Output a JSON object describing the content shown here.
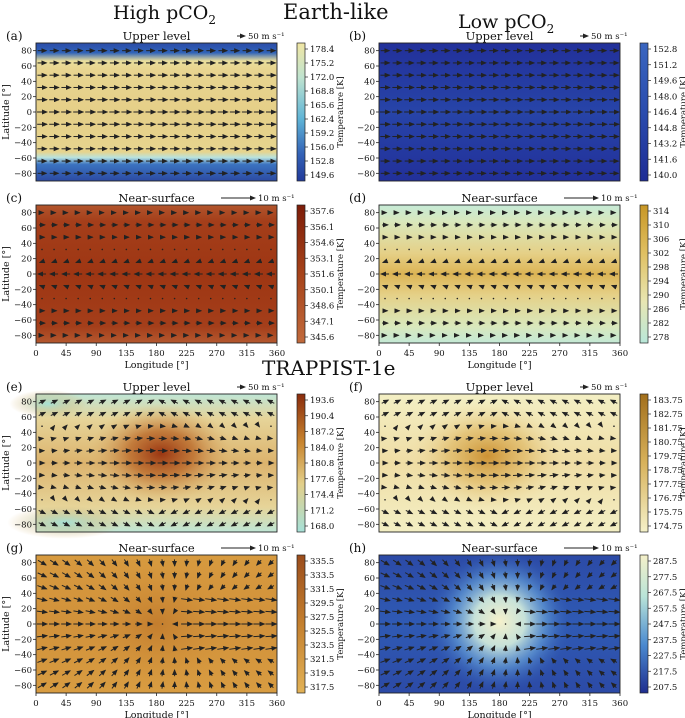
{
  "headers": {
    "earth_like": "Earth-like",
    "trappist": "TRAPPIST-1e",
    "high_pco2": "High pCO",
    "low_pco2": "Low pCO",
    "sub2": "2"
  },
  "colorbar_label": "Temperature [K]",
  "lon_label": "Longitude [°]",
  "lat_label": "Latitude [°]",
  "lon_ticks": [
    "0",
    "45",
    "90",
    "135",
    "180",
    "225",
    "270",
    "315",
    "360"
  ],
  "lat_ticks": [
    "80",
    "60",
    "40",
    "20",
    "0",
    "−20",
    "−40",
    "−60",
    "−80"
  ],
  "chart_data": [
    {
      "id": "a",
      "label": "(a)",
      "type": "heatmap",
      "title": "Upper level",
      "scale": "50 m s⁻¹",
      "xlim": [
        0,
        360
      ],
      "ylim": [
        -90,
        90
      ],
      "cbar_ticks": [
        "178.4",
        "175.2",
        "172.0",
        "168.8",
        "165.6",
        "162.4",
        "159.2",
        "156.0",
        "152.8",
        "149.6"
      ],
      "cmap": "earth-upper",
      "pattern": "zonal-jet"
    },
    {
      "id": "b",
      "label": "(b)",
      "type": "heatmap",
      "title": "Upper level",
      "scale": "50 m s⁻¹",
      "xlim": [
        0,
        360
      ],
      "ylim": [
        -90,
        90
      ],
      "cbar_ticks": [
        "152.8",
        "151.2",
        "149.6",
        "148.0",
        "146.4",
        "144.8",
        "143.2",
        "141.6",
        "140.0"
      ],
      "cmap": "deep-blue",
      "pattern": "zonal-jet"
    },
    {
      "id": "c",
      "label": "(c)",
      "type": "heatmap",
      "title": "Near-surface",
      "scale": "10 m s⁻¹",
      "xlim": [
        0,
        360
      ],
      "ylim": [
        -90,
        90
      ],
      "cbar_ticks": [
        "357.6",
        "356.1",
        "354.6",
        "353.1",
        "351.6",
        "350.1",
        "348.6",
        "347.1",
        "345.6"
      ],
      "cmap": "red-brown",
      "pattern": "trades"
    },
    {
      "id": "d",
      "label": "(d)",
      "type": "heatmap",
      "title": "Near-surface",
      "scale": "10 m s⁻¹",
      "xlim": [
        0,
        360
      ],
      "ylim": [
        -90,
        90
      ],
      "cbar_ticks": [
        "314",
        "310",
        "306",
        "302",
        "298",
        "294",
        "290",
        "286",
        "282",
        "278"
      ],
      "cmap": "yellow-teal",
      "pattern": "trades"
    },
    {
      "id": "e",
      "label": "(e)",
      "type": "heatmap",
      "title": "Upper level",
      "scale": "50 m s⁻¹",
      "xlim": [
        0,
        360
      ],
      "ylim": [
        -90,
        90
      ],
      "cbar_ticks": [
        "193.6",
        "190.4",
        "187.2",
        "184.0",
        "180.8",
        "177.6",
        "174.4",
        "171.2",
        "168.0"
      ],
      "cmap": "brown-cyan",
      "pattern": "gyre"
    },
    {
      "id": "f",
      "label": "(f)",
      "type": "heatmap",
      "title": "Upper level",
      "scale": "50 m s⁻¹",
      "xlim": [
        0,
        360
      ],
      "ylim": [
        -90,
        90
      ],
      "cbar_ticks": [
        "183.75",
        "182.75",
        "181.75",
        "180.75",
        "179.75",
        "178.75",
        "177.75",
        "176.75",
        "175.75",
        "174.75"
      ],
      "cmap": "gold-cream",
      "pattern": "gyre"
    },
    {
      "id": "g",
      "label": "(g)",
      "type": "heatmap",
      "title": "Near-surface",
      "scale": "10 m s⁻¹",
      "xlim": [
        0,
        360
      ],
      "ylim": [
        -90,
        90
      ],
      "cbar_ticks": [
        "335.5",
        "333.5",
        "331.5",
        "329.5",
        "327.5",
        "325.5",
        "323.5",
        "321.5",
        "319.5",
        "317.5"
      ],
      "cmap": "ochre",
      "pattern": "convergence"
    },
    {
      "id": "h",
      "label": "(h)",
      "type": "heatmap",
      "title": "Near-surface",
      "scale": "10 m s⁻¹",
      "xlim": [
        0,
        360
      ],
      "ylim": [
        -90,
        90
      ],
      "cbar_ticks": [
        "287.5",
        "277.5",
        "267.5",
        "257.5",
        "247.5",
        "237.5",
        "227.5",
        "217.5",
        "207.5"
      ],
      "cmap": "blue-cream",
      "pattern": "convergence"
    }
  ]
}
